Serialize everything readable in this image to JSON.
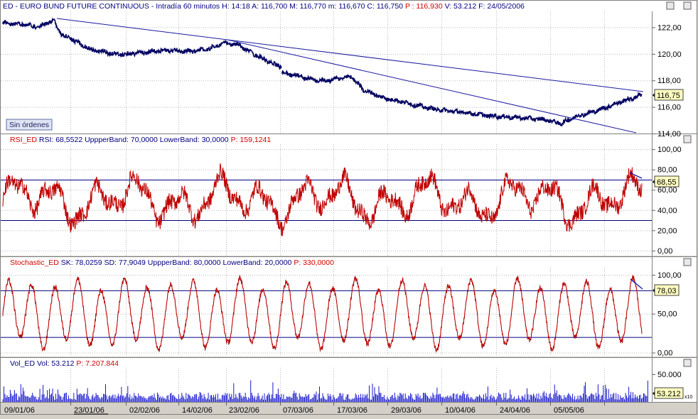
{
  "colors": {
    "background": "#ffffff",
    "frame": "#d4d0c8",
    "price_line": "#000060",
    "trendline": "#1a1aa0",
    "band_line": "#000080",
    "indicator_line": "#c00000",
    "volume_bar": "#1a1acc",
    "grid": "#b8b8b8",
    "header_blue": "#000080",
    "header_red": "#d00000"
  },
  "panels": {
    "price": {
      "header": {
        "symbol": "ED",
        "name": "EURO BUND FUTURE CONTINUOUS",
        "interval": "Intradía 60 minutos",
        "stats": "H: 14:18  A: 116,700  M: 116,770  m: 116,670  C: 116,750",
        "extra": "P : 116,930",
        "vol_date": "V: 53.212  F: 24/05/2006"
      },
      "yaxis_labels": [
        "122,00",
        "120,00",
        "118,00",
        "116,00",
        "114,00"
      ],
      "last_value_label": "116,75",
      "badge": "Sin órdenes"
    },
    "rsi": {
      "header": {
        "name": "RSI_ED",
        "stats": "RSI: 68,5522  UppperBand: 70,0000  LowerBand: 30,0000",
        "extra": "P: 159,1241"
      },
      "yaxis_labels": [
        "100,00",
        "80,00",
        "60,00",
        "40,00",
        "20,00",
        "0,00"
      ],
      "last_value_label": "68,55"
    },
    "stochastic": {
      "header": {
        "name": "Stochastic_ED",
        "stats": "SK: 78,0259  SD: 77,9049  UppperBand: 80,0000  LowerBand: 20,0000",
        "extra": "P: 330,0000"
      },
      "yaxis_labels": [
        "100,00",
        "50,00",
        "0,00"
      ],
      "last_value_label": "78,03"
    },
    "volume": {
      "header": {
        "name": "Vol_ED",
        "stats": "Vol: 53.212",
        "extra": "P: 7.207.844"
      },
      "yaxis_labels": [
        "50.000"
      ],
      "last_value_label": "53.212",
      "multiplier": "x10"
    }
  },
  "xaxis_labels": [
    "09/01/06",
    "23/01/06",
    "02/02/06",
    "14/02/06",
    "23/02/06",
    "07/03/06",
    "17/03/06",
    "29/03/06",
    "10/04/06",
    "24/04/06",
    "05/05/06"
  ],
  "chart_data": [
    {
      "type": "line",
      "title": "ED - EURO BUND FUTURE CONTINUOUS - Intradía 60 minutos",
      "x": [
        "09/01/06",
        "23/01/06",
        "02/02/06",
        "14/02/06",
        "23/02/06",
        "07/03/06",
        "17/03/06",
        "29/03/06",
        "10/04/06",
        "24/04/06",
        "05/05/06",
        "24/05/06"
      ],
      "series": [
        {
          "name": "ED",
          "values": [
            122.3,
            121.4,
            120.0,
            120.3,
            120.8,
            119.0,
            118.3,
            117.0,
            115.9,
            115.4,
            114.8,
            116.75
          ]
        }
      ],
      "ylim": [
        114,
        123
      ],
      "trendlines": [
        {
          "from": [
            "09/01/06",
            122.6
          ],
          "to": [
            "24/05/06",
            117.0
          ]
        },
        {
          "from": [
            "23/02/06",
            120.9
          ],
          "to": [
            "24/05/06",
            113.8
          ]
        }
      ],
      "grid": true
    },
    {
      "type": "line",
      "title": "RSI_ED",
      "x": [
        "09/01/06",
        "23/01/06",
        "02/02/06",
        "14/02/06",
        "23/02/06",
        "07/03/06",
        "17/03/06",
        "29/03/06",
        "10/04/06",
        "24/04/06",
        "05/05/06",
        "24/05/06"
      ],
      "series": [
        {
          "name": "RSI",
          "values": [
            62,
            28,
            70,
            45,
            60,
            30,
            62,
            25,
            58,
            45,
            62,
            68.55
          ]
        }
      ],
      "bands": {
        "upper": 70,
        "lower": 30
      },
      "ylim": [
        -5,
        105
      ],
      "grid": true
    },
    {
      "type": "line",
      "title": "Stochastic_ED",
      "x": [
        "09/01/06",
        "23/01/06",
        "02/02/06",
        "14/02/06",
        "23/02/06",
        "07/03/06",
        "17/03/06",
        "29/03/06",
        "10/04/06",
        "24/04/06",
        "05/05/06",
        "24/05/06"
      ],
      "series": [
        {
          "name": "SK",
          "values": [
            75,
            10,
            90,
            15,
            85,
            10,
            90,
            20,
            80,
            15,
            88,
            78.03
          ]
        },
        {
          "name": "SD",
          "values": [
            72,
            15,
            85,
            20,
            80,
            15,
            85,
            25,
            75,
            20,
            82,
            77.9
          ]
        }
      ],
      "bands": {
        "upper": 80,
        "lower": 20
      },
      "ylim": [
        -5,
        110
      ],
      "grid": true
    },
    {
      "type": "bar",
      "title": "Vol_ED",
      "x": [
        "09/01/06",
        "23/01/06",
        "02/02/06",
        "14/02/06",
        "23/02/06",
        "07/03/06",
        "17/03/06",
        "29/03/06",
        "10/04/06",
        "24/04/06",
        "05/05/06",
        "24/05/06"
      ],
      "series": [
        {
          "name": "Vol",
          "values": [
            2500,
            2200,
            2600,
            2300,
            2400,
            2100,
            2700,
            2300,
            2500,
            2400,
            2600,
            5321.2
          ]
        }
      ],
      "ylim": [
        0,
        6000
      ],
      "grid": false
    }
  ]
}
